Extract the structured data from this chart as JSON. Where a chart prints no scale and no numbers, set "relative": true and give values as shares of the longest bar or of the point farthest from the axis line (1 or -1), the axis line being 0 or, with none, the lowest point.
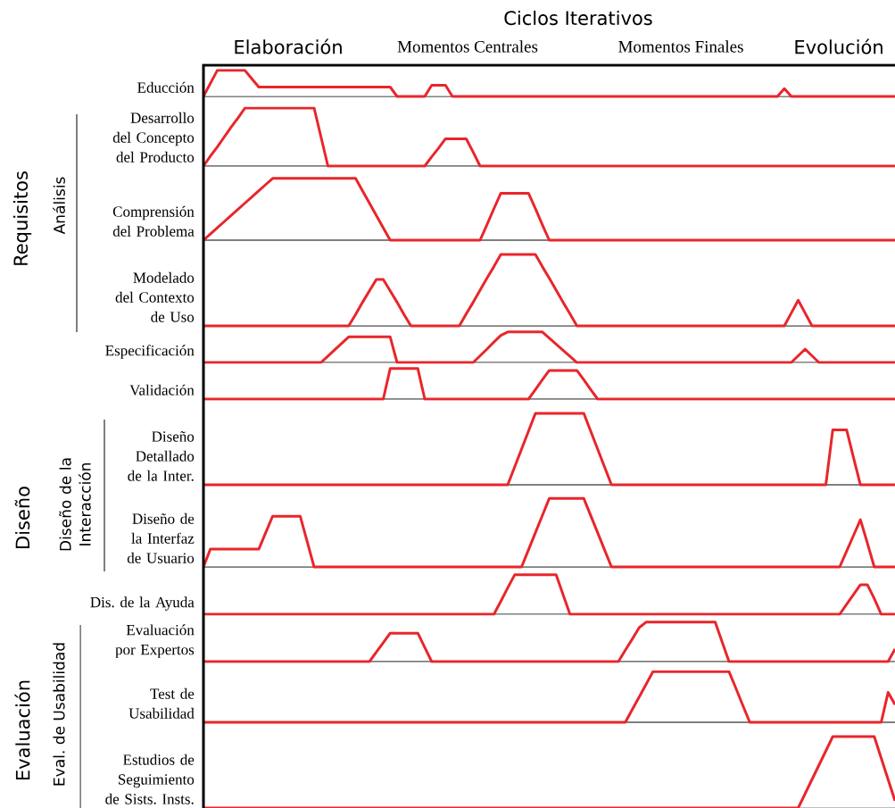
{
  "chart_data": [
    {
      "type": "line",
      "relative": true,
      "color": "#e8262b",
      "title": "Ciclos Iterativos",
      "annotations": [
        "Elaboración",
        "Momentos Centrales",
        "Momentos Finales",
        "Evolución",
        "Requisitos",
        "Análisis",
        "Diseño",
        "Diseño de la Interacción",
        "Evaluación",
        "Eval. de Usabilidad"
      ],
      "ylabel": "Educción",
      "categories": [
        null,
        null,
        null,
        null,
        null,
        null,
        null,
        null,
        null,
        null,
        null,
        null,
        null,
        null,
        null,
        null,
        null,
        null,
        null,
        null,
        null,
        null,
        null,
        null,
        null,
        null,
        null,
        null,
        null,
        null,
        null,
        null,
        null,
        null,
        null,
        null,
        null,
        null,
        null,
        null,
        null,
        null,
        null,
        null,
        null,
        null,
        null,
        null,
        null,
        null,
        null,
        null,
        null,
        null,
        null,
        null,
        null,
        null,
        null,
        null,
        null,
        null,
        null,
        null,
        null,
        null,
        null,
        null,
        null,
        null,
        null,
        null,
        null,
        null,
        null,
        null,
        null,
        null,
        null,
        null,
        null,
        null,
        null,
        null,
        null,
        null,
        null,
        null,
        null,
        null,
        null,
        null,
        null,
        null,
        null,
        null,
        null,
        null,
        null,
        null,
        null
      ],
      "values": [
        0,
        0.5,
        1,
        1,
        1,
        1,
        1,
        0.68,
        0.36,
        0.36,
        0.36,
        0.36,
        0.36,
        0.36,
        0.36,
        0.36,
        0.36,
        0.36,
        0.36,
        0.36,
        0.36,
        0.36,
        0.36,
        0.36,
        0.36,
        0.36,
        0.36,
        0.36,
        0,
        0,
        0,
        0,
        0,
        0.43,
        0.43,
        0.43,
        0,
        0,
        0,
        0,
        0,
        0,
        0,
        0,
        0,
        0,
        0,
        0,
        0,
        0,
        0,
        0,
        0,
        0,
        0,
        0,
        0,
        0,
        0,
        0,
        0,
        0,
        0,
        0,
        0,
        0,
        0,
        0,
        0,
        0,
        0,
        0,
        0,
        0,
        0,
        0,
        0,
        0,
        0,
        0,
        0,
        0,
        0,
        0,
        0.3,
        0,
        0,
        0,
        0,
        0,
        0,
        0,
        0,
        0,
        0,
        0,
        0,
        0,
        0,
        0,
        0
      ]
    },
    {
      "type": "line",
      "relative": true,
      "color": "#e8262b",
      "ylabel": "Desarrollo del Concepto del Producto",
      "categories": [
        null,
        null,
        null,
        null,
        null,
        null,
        null,
        null,
        null,
        null,
        null,
        null,
        null,
        null,
        null,
        null,
        null,
        null,
        null,
        null,
        null,
        null,
        null,
        null,
        null,
        null,
        null,
        null,
        null,
        null,
        null,
        null,
        null,
        null,
        null,
        null,
        null,
        null,
        null,
        null,
        null,
        null,
        null,
        null,
        null,
        null,
        null,
        null,
        null,
        null,
        null,
        null,
        null,
        null,
        null,
        null,
        null,
        null,
        null,
        null,
        null,
        null,
        null,
        null,
        null,
        null,
        null,
        null,
        null,
        null,
        null,
        null,
        null,
        null,
        null,
        null,
        null,
        null,
        null,
        null,
        null,
        null,
        null,
        null,
        null,
        null,
        null,
        null,
        null,
        null,
        null,
        null,
        null,
        null,
        null,
        null,
        null,
        null,
        null,
        null,
        null
      ],
      "values": [
        0,
        0.17,
        0.33,
        0.5,
        0.67,
        0.83,
        1,
        1,
        1,
        1,
        1,
        1,
        1,
        1,
        1,
        1,
        1,
        0.5,
        0,
        0,
        0,
        0,
        0,
        0,
        0,
        0,
        0,
        0,
        0,
        0,
        0,
        0,
        0,
        0.16,
        0.31,
        0.47,
        0.47,
        0.47,
        0.47,
        0.24,
        0,
        0,
        0,
        0,
        0,
        0,
        0,
        0,
        0,
        0,
        0,
        0,
        0,
        0,
        0,
        0,
        0,
        0,
        0,
        0,
        0,
        0,
        0,
        0,
        0,
        0,
        0,
        0,
        0,
        0,
        0,
        0,
        0,
        0,
        0,
        0,
        0,
        0,
        0,
        0,
        0,
        0,
        0,
        0,
        0,
        0,
        0,
        0,
        0,
        0,
        0,
        0,
        0,
        0,
        0,
        0,
        0,
        0,
        0,
        0,
        0
      ]
    },
    {
      "type": "line",
      "relative": true,
      "color": "#e8262b",
      "ylabel": "Comprensión del Problema",
      "categories": [
        null,
        null,
        null,
        null,
        null,
        null,
        null,
        null,
        null,
        null,
        null,
        null,
        null,
        null,
        null,
        null,
        null,
        null,
        null,
        null,
        null,
        null,
        null,
        null,
        null,
        null,
        null,
        null,
        null,
        null,
        null,
        null,
        null,
        null,
        null,
        null,
        null,
        null,
        null,
        null,
        null,
        null,
        null,
        null,
        null,
        null,
        null,
        null,
        null,
        null,
        null,
        null,
        null,
        null,
        null,
        null,
        null,
        null,
        null,
        null,
        null,
        null,
        null,
        null,
        null,
        null,
        null,
        null,
        null,
        null,
        null,
        null,
        null,
        null,
        null,
        null,
        null,
        null,
        null,
        null,
        null,
        null,
        null,
        null,
        null,
        null,
        null,
        null,
        null,
        null,
        null,
        null,
        null,
        null,
        null,
        null,
        null,
        null,
        null,
        null,
        null
      ],
      "values": [
        0,
        0.1,
        0.2,
        0.3,
        0.4,
        0.5,
        0.6,
        0.7,
        0.8,
        0.9,
        1,
        1,
        1,
        1,
        1,
        1,
        1,
        1,
        1,
        1,
        1,
        1,
        1,
        0.8,
        0.6,
        0.4,
        0.2,
        0,
        0,
        0,
        0,
        0,
        0,
        0,
        0,
        0,
        0,
        0,
        0,
        0,
        0,
        0.25,
        0.51,
        0.76,
        0.76,
        0.76,
        0.76,
        0.76,
        0.51,
        0.25,
        0,
        0,
        0,
        0,
        0,
        0,
        0,
        0,
        0,
        0,
        0,
        0,
        0,
        0,
        0,
        0,
        0,
        0,
        0,
        0,
        0,
        0,
        0,
        0,
        0,
        0,
        0,
        0,
        0,
        0,
        0,
        0,
        0,
        0,
        0,
        0,
        0,
        0,
        0,
        0,
        0,
        0,
        0,
        0,
        0,
        0,
        0,
        0,
        0,
        0,
        0
      ]
    },
    {
      "type": "line",
      "relative": true,
      "color": "#e8262b",
      "ylabel": "Modelado del Contexto de Uso",
      "categories": [
        null,
        null,
        null,
        null,
        null,
        null,
        null,
        null,
        null,
        null,
        null,
        null,
        null,
        null,
        null,
        null,
        null,
        null,
        null,
        null,
        null,
        null,
        null,
        null,
        null,
        null,
        null,
        null,
        null,
        null,
        null,
        null,
        null,
        null,
        null,
        null,
        null,
        null,
        null,
        null,
        null,
        null,
        null,
        null,
        null,
        null,
        null,
        null,
        null,
        null,
        null,
        null,
        null,
        null,
        null,
        null,
        null,
        null,
        null,
        null,
        null,
        null,
        null,
        null,
        null,
        null,
        null,
        null,
        null,
        null,
        null,
        null,
        null,
        null,
        null,
        null,
        null,
        null,
        null,
        null,
        null,
        null,
        null,
        null,
        null,
        null,
        null,
        null,
        null,
        null,
        null,
        null,
        null,
        null,
        null,
        null,
        null,
        null,
        null,
        null,
        null
      ],
      "values": [
        0,
        0,
        0,
        0,
        0,
        0,
        0,
        0,
        0,
        0,
        0,
        0,
        0,
        0,
        0,
        0,
        0,
        0,
        0,
        0,
        0,
        0,
        0.16,
        0.33,
        0.49,
        0.65,
        0.65,
        0.49,
        0.33,
        0.16,
        0,
        0,
        0,
        0,
        0,
        0,
        0,
        0,
        0.17,
        0.33,
        0.5,
        0.67,
        0.83,
        1,
        1,
        1,
        1,
        1,
        1,
        0.83,
        0.67,
        0.5,
        0.33,
        0.17,
        0,
        0,
        0,
        0,
        0,
        0,
        0,
        0,
        0,
        0,
        0,
        0,
        0,
        0,
        0,
        0,
        0,
        0,
        0,
        0,
        0,
        0,
        0,
        0,
        0,
        0,
        0,
        0,
        0,
        0,
        0,
        0.18,
        0.36,
        0.18,
        0,
        0,
        0,
        0,
        0,
        0,
        0,
        0,
        0,
        0,
        0,
        0,
        0
      ]
    },
    {
      "type": "line",
      "relative": true,
      "color": "#e8262b",
      "ylabel": "Especificación",
      "categories": [
        null,
        null,
        null,
        null,
        null,
        null,
        null,
        null,
        null,
        null,
        null,
        null,
        null,
        null,
        null,
        null,
        null,
        null,
        null,
        null,
        null,
        null,
        null,
        null,
        null,
        null,
        null,
        null,
        null,
        null,
        null,
        null,
        null,
        null,
        null,
        null,
        null,
        null,
        null,
        null,
        null,
        null,
        null,
        null,
        null,
        null,
        null,
        null,
        null,
        null,
        null,
        null,
        null,
        null,
        null,
        null,
        null,
        null,
        null,
        null,
        null,
        null,
        null,
        null,
        null,
        null,
        null,
        null,
        null,
        null,
        null,
        null,
        null,
        null,
        null,
        null,
        null,
        null,
        null,
        null,
        null,
        null,
        null,
        null,
        null,
        null,
        null,
        null,
        null,
        null,
        null,
        null,
        null,
        null,
        null,
        null,
        null,
        null,
        null,
        null,
        null
      ],
      "values": [
        0,
        0,
        0,
        0,
        0,
        0,
        0,
        0,
        0,
        0,
        0,
        0,
        0,
        0,
        0,
        0,
        0,
        0,
        0.21,
        0.42,
        0.63,
        0.84,
        0.84,
        0.84,
        0.84,
        0.84,
        0.84,
        0.84,
        0,
        0,
        0,
        0,
        0,
        0,
        0,
        0,
        0,
        0,
        0,
        0,
        0.22,
        0.44,
        0.67,
        0.89,
        1,
        1,
        1,
        1,
        1,
        1,
        0.8,
        0.6,
        0.4,
        0.2,
        0,
        0,
        0,
        0,
        0,
        0,
        0,
        0,
        0,
        0,
        0,
        0,
        0,
        0,
        0,
        0,
        0,
        0,
        0,
        0,
        0,
        0,
        0,
        0,
        0,
        0,
        0,
        0,
        0,
        0,
        0,
        0,
        0.22,
        0.44,
        0.22,
        0,
        0,
        0,
        0,
        0,
        0,
        0,
        0,
        0,
        0,
        0,
        0
      ]
    },
    {
      "type": "line",
      "relative": true,
      "color": "#e8262b",
      "ylabel": "Validación",
      "categories": [
        null,
        null,
        null,
        null,
        null,
        null,
        null,
        null,
        null,
        null,
        null,
        null,
        null,
        null,
        null,
        null,
        null,
        null,
        null,
        null,
        null,
        null,
        null,
        null,
        null,
        null,
        null,
        null,
        null,
        null,
        null,
        null,
        null,
        null,
        null,
        null,
        null,
        null,
        null,
        null,
        null,
        null,
        null,
        null,
        null,
        null,
        null,
        null,
        null,
        null,
        null,
        null,
        null,
        null,
        null,
        null,
        null,
        null,
        null,
        null,
        null,
        null,
        null,
        null,
        null,
        null,
        null,
        null,
        null,
        null,
        null,
        null,
        null,
        null,
        null,
        null,
        null,
        null,
        null,
        null,
        null,
        null,
        null,
        null,
        null,
        null,
        null,
        null,
        null,
        null,
        null,
        null,
        null,
        null,
        null,
        null,
        null,
        null,
        null,
        null,
        null
      ],
      "values": [
        0,
        0,
        0,
        0,
        0,
        0,
        0,
        0,
        0,
        0,
        0,
        0,
        0,
        0,
        0,
        0,
        0,
        0,
        0,
        0,
        0,
        0,
        0,
        0,
        0,
        0,
        0,
        1,
        1,
        1,
        1,
        1,
        0,
        0,
        0,
        0,
        0,
        0,
        0,
        0,
        0,
        0,
        0,
        0,
        0,
        0,
        0,
        0,
        0.31,
        0.63,
        0.94,
        0.94,
        0.94,
        0.94,
        0.94,
        0.63,
        0.31,
        0,
        0,
        0,
        0,
        0,
        0,
        0,
        0,
        0,
        0,
        0,
        0,
        0,
        0,
        0,
        0,
        0,
        0,
        0,
        0,
        0,
        0,
        0,
        0,
        0,
        0,
        0,
        0,
        0,
        0,
        0,
        0,
        0,
        0,
        0,
        0,
        0,
        0,
        0,
        0,
        0,
        0,
        0,
        0
      ]
    },
    {
      "type": "line",
      "relative": true,
      "color": "#e8262b",
      "ylabel": "Diseño Detallado de la Inter.",
      "categories": [
        null,
        null,
        null,
        null,
        null,
        null,
        null,
        null,
        null,
        null,
        null,
        null,
        null,
        null,
        null,
        null,
        null,
        null,
        null,
        null,
        null,
        null,
        null,
        null,
        null,
        null,
        null,
        null,
        null,
        null,
        null,
        null,
        null,
        null,
        null,
        null,
        null,
        null,
        null,
        null,
        null,
        null,
        null,
        null,
        null,
        null,
        null,
        null,
        null,
        null,
        null,
        null,
        null,
        null,
        null,
        null,
        null,
        null,
        null,
        null,
        null,
        null,
        null,
        null,
        null,
        null,
        null,
        null,
        null,
        null,
        null,
        null,
        null,
        null,
        null,
        null,
        null,
        null,
        null,
        null,
        null,
        null,
        null,
        null,
        null,
        null,
        null,
        null,
        null,
        null,
        null,
        null,
        null,
        null,
        null,
        null,
        null,
        null,
        null,
        null,
        null
      ],
      "values": [
        0,
        0,
        0,
        0,
        0,
        0,
        0,
        0,
        0,
        0,
        0,
        0,
        0,
        0,
        0,
        0,
        0,
        0,
        0,
        0,
        0,
        0,
        0,
        0,
        0,
        0,
        0,
        0,
        0,
        0,
        0,
        0,
        0,
        0,
        0,
        0,
        0,
        0,
        0,
        0,
        0,
        0,
        0,
        0,
        0,
        0.25,
        0.5,
        0.75,
        1,
        1,
        1,
        1,
        1,
        1,
        1,
        1,
        0.75,
        0.5,
        0.25,
        0,
        0,
        0,
        0,
        0,
        0,
        0,
        0,
        0,
        0,
        0,
        0,
        0,
        0,
        0,
        0,
        0,
        0,
        0,
        0,
        0,
        0,
        0,
        0,
        0,
        0,
        0,
        0,
        0,
        0,
        0,
        0,
        0.77,
        0.77,
        0.77,
        0.38,
        0,
        0,
        0,
        0,
        0,
        0
      ]
    },
    {
      "type": "line",
      "relative": true,
      "color": "#e8262b",
      "ylabel": "Diseño de la Interfaz de Usuario",
      "categories": [
        null,
        null,
        null,
        null,
        null,
        null,
        null,
        null,
        null,
        null,
        null,
        null,
        null,
        null,
        null,
        null,
        null,
        null,
        null,
        null,
        null,
        null,
        null,
        null,
        null,
        null,
        null,
        null,
        null,
        null,
        null,
        null,
        null,
        null,
        null,
        null,
        null,
        null,
        null,
        null,
        null,
        null,
        null,
        null,
        null,
        null,
        null,
        null,
        null,
        null,
        null,
        null,
        null,
        null,
        null,
        null,
        null,
        null,
        null,
        null,
        null,
        null,
        null,
        null,
        null,
        null,
        null,
        null,
        null,
        null,
        null,
        null,
        null,
        null,
        null,
        null,
        null,
        null,
        null,
        null,
        null,
        null,
        null,
        null,
        null,
        null,
        null,
        null,
        null,
        null,
        null,
        null,
        null,
        null,
        null,
        null,
        null,
        null,
        null,
        null,
        null
      ],
      "values": [
        0,
        0.26,
        0.26,
        0.26,
        0.26,
        0.26,
        0.26,
        0.26,
        0.26,
        0.5,
        0.74,
        0.74,
        0.74,
        0.74,
        0.74,
        0.37,
        0,
        0,
        0,
        0,
        0,
        0,
        0,
        0,
        0,
        0,
        0,
        0,
        0,
        0,
        0,
        0,
        0,
        0,
        0,
        0,
        0,
        0,
        0,
        0,
        0,
        0,
        0,
        0,
        0,
        0,
        0,
        0.25,
        0.5,
        0.75,
        1,
        1,
        1,
        1,
        1,
        1,
        0.75,
        0.5,
        0.25,
        0,
        0,
        0,
        0,
        0,
        0,
        0,
        0,
        0,
        0,
        0,
        0,
        0,
        0,
        0,
        0,
        0,
        0,
        0,
        0,
        0,
        0,
        0,
        0,
        0,
        0,
        0,
        0,
        0,
        0,
        0,
        0,
        0,
        0,
        0.23,
        0.46,
        0.69,
        0.35,
        0,
        0,
        0,
        0
      ]
    },
    {
      "type": "line",
      "relative": true,
      "color": "#e8262b",
      "ylabel": "Dis. de la Ayuda",
      "categories": [
        null,
        null,
        null,
        null,
        null,
        null,
        null,
        null,
        null,
        null,
        null,
        null,
        null,
        null,
        null,
        null,
        null,
        null,
        null,
        null,
        null,
        null,
        null,
        null,
        null,
        null,
        null,
        null,
        null,
        null,
        null,
        null,
        null,
        null,
        null,
        null,
        null,
        null,
        null,
        null,
        null,
        null,
        null,
        null,
        null,
        null,
        null,
        null,
        null,
        null,
        null,
        null,
        null,
        null,
        null,
        null,
        null,
        null,
        null,
        null,
        null,
        null,
        null,
        null,
        null,
        null,
        null,
        null,
        null,
        null,
        null,
        null,
        null,
        null,
        null,
        null,
        null,
        null,
        null,
        null,
        null,
        null,
        null,
        null,
        null,
        null,
        null,
        null,
        null,
        null,
        null,
        null,
        null,
        null,
        null,
        null,
        null,
        null,
        null,
        null,
        null
      ],
      "values": [
        0,
        0,
        0,
        0,
        0,
        0,
        0,
        0,
        0,
        0,
        0,
        0,
        0,
        0,
        0,
        0,
        0,
        0,
        0,
        0,
        0,
        0,
        0,
        0,
        0,
        0,
        0,
        0,
        0,
        0,
        0,
        0,
        0,
        0,
        0,
        0,
        0,
        0,
        0,
        0,
        0,
        0,
        0,
        0.33,
        0.67,
        1,
        1,
        1,
        1,
        1,
        1,
        1,
        0.5,
        0,
        0,
        0,
        0,
        0,
        0,
        0,
        0,
        0,
        0,
        0,
        0,
        0,
        0,
        0,
        0,
        0,
        0,
        0,
        0,
        0,
        0,
        0,
        0,
        0,
        0,
        0,
        0,
        0,
        0,
        0,
        0,
        0,
        0,
        0,
        0,
        0,
        0,
        0,
        0,
        0.25,
        0.5,
        0.75,
        0.75,
        0.4,
        0,
        0,
        0
      ]
    },
    {
      "type": "line",
      "relative": true,
      "color": "#e8262b",
      "ylabel": "Evaluación por Expertos",
      "categories": [
        null,
        null,
        null,
        null,
        null,
        null,
        null,
        null,
        null,
        null,
        null,
        null,
        null,
        null,
        null,
        null,
        null,
        null,
        null,
        null,
        null,
        null,
        null,
        null,
        null,
        null,
        null,
        null,
        null,
        null,
        null,
        null,
        null,
        null,
        null,
        null,
        null,
        null,
        null,
        null,
        null,
        null,
        null,
        null,
        null,
        null,
        null,
        null,
        null,
        null,
        null,
        null,
        null,
        null,
        null,
        null,
        null,
        null,
        null,
        null,
        null,
        null,
        null,
        null,
        null,
        null,
        null,
        null,
        null,
        null,
        null,
        null,
        null,
        null,
        null,
        null,
        null,
        null,
        null,
        null,
        null,
        null,
        null,
        null,
        null,
        null,
        null,
        null,
        null,
        null,
        null,
        null,
        null,
        null,
        null,
        null,
        null,
        null,
        null,
        null,
        null
      ],
      "values": [
        0,
        0,
        0,
        0,
        0,
        0,
        0,
        0,
        0,
        0,
        0,
        0,
        0,
        0,
        0,
        0,
        0,
        0,
        0,
        0,
        0,
        0,
        0,
        0,
        0,
        0.24,
        0.48,
        0.72,
        0.72,
        0.72,
        0.72,
        0.72,
        0.36,
        0,
        0,
        0,
        0,
        0,
        0,
        0,
        0,
        0,
        0,
        0,
        0,
        0,
        0,
        0,
        0,
        0,
        0,
        0,
        0,
        0,
        0,
        0,
        0,
        0,
        0,
        0,
        0,
        0.29,
        0.57,
        0.86,
        1,
        1,
        1,
        1,
        1,
        1,
        1,
        1,
        1,
        1,
        1,
        0.5,
        0,
        0,
        0,
        0,
        0,
        0,
        0,
        0,
        0,
        0,
        0,
        0,
        0,
        0,
        0,
        0,
        0,
        0,
        0,
        0,
        0,
        0,
        0,
        0,
        0.32
      ]
    },
    {
      "type": "line",
      "relative": true,
      "color": "#e8262b",
      "ylabel": "Test de Usabilidad",
      "categories": [
        null,
        null,
        null,
        null,
        null,
        null,
        null,
        null,
        null,
        null,
        null,
        null,
        null,
        null,
        null,
        null,
        null,
        null,
        null,
        null,
        null,
        null,
        null,
        null,
        null,
        null,
        null,
        null,
        null,
        null,
        null,
        null,
        null,
        null,
        null,
        null,
        null,
        null,
        null,
        null,
        null,
        null,
        null,
        null,
        null,
        null,
        null,
        null,
        null,
        null,
        null,
        null,
        null,
        null,
        null,
        null,
        null,
        null,
        null,
        null,
        null,
        null,
        null,
        null,
        null,
        null,
        null,
        null,
        null,
        null,
        null,
        null,
        null,
        null,
        null,
        null,
        null,
        null,
        null,
        null,
        null,
        null,
        null,
        null,
        null,
        null,
        null,
        null,
        null,
        null,
        null,
        null,
        null,
        null,
        null,
        null,
        null,
        null,
        null,
        null,
        null
      ],
      "values": [
        0,
        0,
        0,
        0,
        0,
        0,
        0,
        0,
        0,
        0,
        0,
        0,
        0,
        0,
        0,
        0,
        0,
        0,
        0,
        0,
        0,
        0,
        0,
        0,
        0,
        0,
        0,
        0,
        0,
        0,
        0,
        0,
        0,
        0,
        0,
        0,
        0,
        0,
        0,
        0,
        0,
        0,
        0,
        0,
        0,
        0,
        0,
        0,
        0,
        0,
        0,
        0,
        0,
        0,
        0,
        0,
        0,
        0,
        0,
        0,
        0,
        0,
        0.25,
        0.5,
        0.75,
        1,
        1,
        1,
        1,
        1,
        1,
        1,
        1,
        1,
        1,
        1,
        1,
        0.67,
        0.33,
        0,
        0,
        0,
        0,
        0,
        0,
        0,
        0,
        0,
        0,
        0,
        0,
        0,
        0,
        0,
        0,
        0,
        0,
        0,
        0,
        0.59,
        0.35
      ]
    },
    {
      "type": "line",
      "relative": true,
      "color": "#e8262b",
      "ylabel": "Estudios de Seguimiento de Sists. Insts.",
      "categories": [
        null,
        null,
        null,
        null,
        null,
        null,
        null,
        null,
        null,
        null,
        null,
        null,
        null,
        null,
        null,
        null,
        null,
        null,
        null,
        null,
        null,
        null,
        null,
        null,
        null,
        null,
        null,
        null,
        null,
        null,
        null,
        null,
        null,
        null,
        null,
        null,
        null,
        null,
        null,
        null,
        null,
        null,
        null,
        null,
        null,
        null,
        null,
        null,
        null,
        null,
        null,
        null,
        null,
        null,
        null,
        null,
        null,
        null,
        null,
        null,
        null,
        null,
        null,
        null,
        null,
        null,
        null,
        null,
        null,
        null,
        null,
        null,
        null,
        null,
        null,
        null,
        null,
        null,
        null,
        null,
        null,
        null,
        null,
        null,
        null,
        null,
        null,
        null,
        null,
        null,
        null,
        null,
        null,
        null,
        null,
        null,
        null,
        null,
        null,
        null,
        null
      ],
      "values": [
        0,
        0,
        0,
        0,
        0,
        0,
        0,
        0,
        0,
        0,
        0,
        0,
        0,
        0,
        0,
        0,
        0,
        0,
        0,
        0,
        0,
        0,
        0,
        0,
        0,
        0,
        0,
        0,
        0,
        0,
        0,
        0,
        0,
        0,
        0,
        0,
        0,
        0,
        0,
        0,
        0,
        0,
        0,
        0,
        0,
        0,
        0,
        0,
        0,
        0,
        0,
        0,
        0,
        0,
        0,
        0,
        0,
        0,
        0,
        0,
        0,
        0,
        0,
        0,
        0,
        0,
        0,
        0,
        0,
        0,
        0,
        0,
        0,
        0,
        0,
        0,
        0,
        0,
        0,
        0,
        0,
        0,
        0,
        0,
        0,
        0,
        0,
        0.2,
        0.4,
        0.6,
        0.8,
        1,
        1,
        1,
        1,
        1,
        1,
        1,
        0.7,
        0.4,
        0.1
      ]
    }
  ]
}
